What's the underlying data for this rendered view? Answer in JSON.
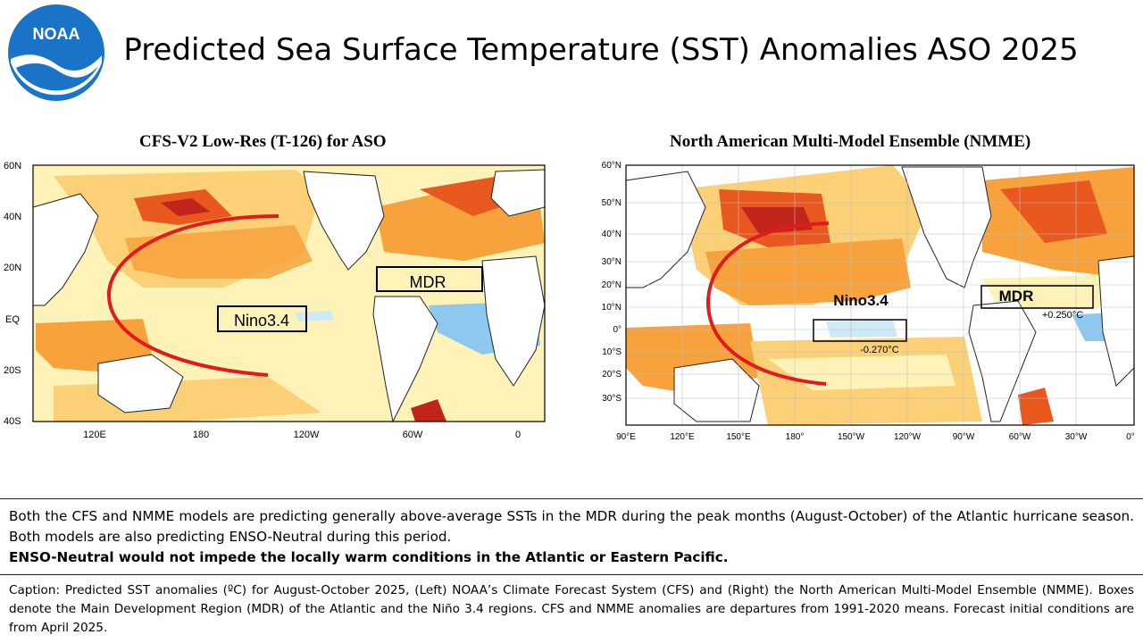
{
  "header": {
    "logo_text": "NOAA",
    "title": "Predicted Sea Surface Temperature (SST) Anomalies ASO 2025"
  },
  "left_map": {
    "title": "CFS-V2 Low-Res (T-126) for ASO",
    "lat_labels": [
      "60N",
      "40N",
      "20N",
      "EQ",
      "20S",
      "40S"
    ],
    "lon_labels": [
      "120E",
      "180",
      "120W",
      "60W",
      "0"
    ],
    "box_labels": {
      "mdr": "MDR",
      "nino": "Nino3.4"
    }
  },
  "right_map": {
    "title": "North American Multi-Model Ensemble (NMME)",
    "lat_labels": [
      "60°N",
      "50°N",
      "40°N",
      "30°N",
      "20°N",
      "10°N",
      "0°",
      "10°S",
      "20°S",
      "30°S"
    ],
    "lon_labels": [
      "90°E",
      "120°E",
      "150°E",
      "180°",
      "150°W",
      "120°W",
      "90°W",
      "60°W",
      "30°W",
      "0°"
    ],
    "box_labels": {
      "mdr": "MDR",
      "nino": "Nino3.4"
    },
    "values": {
      "mdr": "+0.250°C",
      "nino": "-0.270°C"
    }
  },
  "colors": {
    "warm_light": "#fdf3b8",
    "warm_mid": "#fbd077",
    "warm": "#f7a23c",
    "hot": "#e8581f",
    "hotter": "#c0241a",
    "cool": "#cfeaf7",
    "cooler": "#8fc8ee",
    "arc": "#e11b1b",
    "noaa_blue": "#1a73c6"
  },
  "summary": {
    "line1": "Both the CFS and NMME models are predicting generally above-average SSTs in the MDR during the peak months (August-October) of the Atlantic hurricane season. Both models are also predicting ENSO-Neutral during this period.",
    "line2": "ENSO-Neutral would not impede the locally warm conditions in the Atlantic or Eastern Pacific."
  },
  "caption": "Caption: Predicted SST anomalies (ºC) for August-October 2025, (Left) NOAA’s Climate Forecast System (CFS) and (Right) the North American Multi-Model Ensemble (NMME). Boxes denote the Main Development Region (MDR) of the Atlantic and the Niño 3.4 regions. CFS and NMME anomalies are departures from 1991-2020 means. Forecast initial conditions are from April 2025."
}
